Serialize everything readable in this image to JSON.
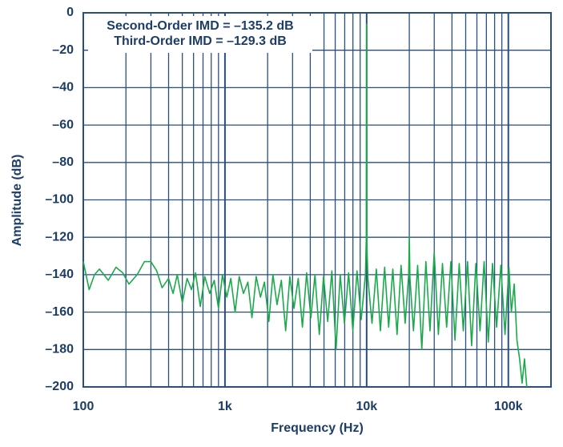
{
  "chart_data": {
    "type": "line",
    "x_label": "Frequency (Hz)",
    "y_label": "Amplitude (dB)",
    "annotations": [
      "Second-Order IMD = –135.2 dB",
      "Third-Order IMD = –129.3 dB"
    ],
    "x_log": true,
    "grid": true,
    "color": "#1aaa4a",
    "xlim": [
      100,
      200000
    ],
    "ylim": [
      -200,
      0
    ],
    "xticks": [
      100,
      {
        "value": 1000,
        "label": "1k"
      },
      {
        "value": 10000,
        "label": "10k"
      },
      {
        "value": 100000,
        "label": "100k"
      }
    ],
    "x_minor_ticks": [
      200,
      300,
      400,
      500,
      600,
      700,
      800,
      900,
      2000,
      3000,
      4000,
      5000,
      6000,
      7000,
      8000,
      9000,
      20000,
      30000,
      40000,
      50000,
      60000,
      70000,
      80000,
      90000
    ],
    "yticks": [
      0,
      {
        "value": -20,
        "label": "–20"
      },
      {
        "value": -40,
        "label": "–40"
      },
      {
        "value": -60,
        "label": "–60"
      },
      {
        "value": -80,
        "label": "–80"
      },
      {
        "value": -100,
        "label": "–100"
      },
      {
        "value": -120,
        "label": "–120"
      },
      {
        "value": -140,
        "label": "–140"
      },
      {
        "value": -160,
        "label": "–160"
      },
      {
        "value": -180,
        "label": "–180"
      },
      {
        "value": -200,
        "label": "–200"
      }
    ],
    "x": [
      100,
      110,
      120,
      130,
      150,
      170,
      190,
      210,
      240,
      270,
      300,
      330,
      360,
      400,
      430,
      460,
      500,
      540,
      580,
      620,
      670,
      720,
      780,
      840,
      900,
      960,
      1030,
      1100,
      1180,
      1260,
      1350,
      1450,
      1550,
      1660,
      1780,
      1900,
      2040,
      2180,
      2330,
      2500,
      2680,
      2870,
      3070,
      3290,
      3520,
      3770,
      4040,
      4320,
      4630,
      4960,
      5310,
      5680,
      6080,
      6510,
      6970,
      7460,
      7990,
      8550,
      9150,
      9800,
      9950,
      10000,
      10050,
      10200,
      10900,
      11700,
      12500,
      13400,
      14300,
      15300,
      16400,
      17500,
      18700,
      19800,
      20000,
      20200,
      21400,
      22900,
      24500,
      26200,
      28000,
      30000,
      32100,
      34300,
      36700,
      39300,
      42000,
      45000,
      48100,
      51500,
      55100,
      59000,
      63100,
      67500,
      72200,
      77300,
      82700,
      88500,
      94700,
      101000,
      105000,
      110000,
      115000,
      120000,
      125000,
      130000,
      135000
    ],
    "values": [
      -133,
      -148,
      -140,
      -137,
      -143,
      -136,
      -139,
      -145,
      -140,
      -133,
      -133,
      -138,
      -147,
      -142,
      -150,
      -140,
      -155,
      -142,
      -148,
      -139,
      -157,
      -141,
      -150,
      -143,
      -158,
      -140,
      -152,
      -142,
      -160,
      -141,
      -150,
      -144,
      -163,
      -141,
      -152,
      -144,
      -165,
      -140,
      -156,
      -143,
      -170,
      -141,
      -158,
      -142,
      -168,
      -139,
      -163,
      -140,
      -172,
      -141,
      -165,
      -138,
      -180,
      -140,
      -166,
      -139,
      -170,
      -138,
      -164,
      -140,
      -120,
      -6,
      -125,
      -142,
      -166,
      -137,
      -170,
      -136,
      -168,
      -137,
      -172,
      -135,
      -166,
      -140,
      -120,
      -142,
      -170,
      -135,
      -180,
      -133,
      -170,
      -128,
      -172,
      -134,
      -168,
      -133,
      -175,
      -134,
      -170,
      -133,
      -178,
      -134,
      -170,
      -133,
      -176,
      -134,
      -168,
      -135,
      -172,
      -136,
      -160,
      -145,
      -175,
      -185,
      -198,
      -185,
      -200
    ]
  }
}
